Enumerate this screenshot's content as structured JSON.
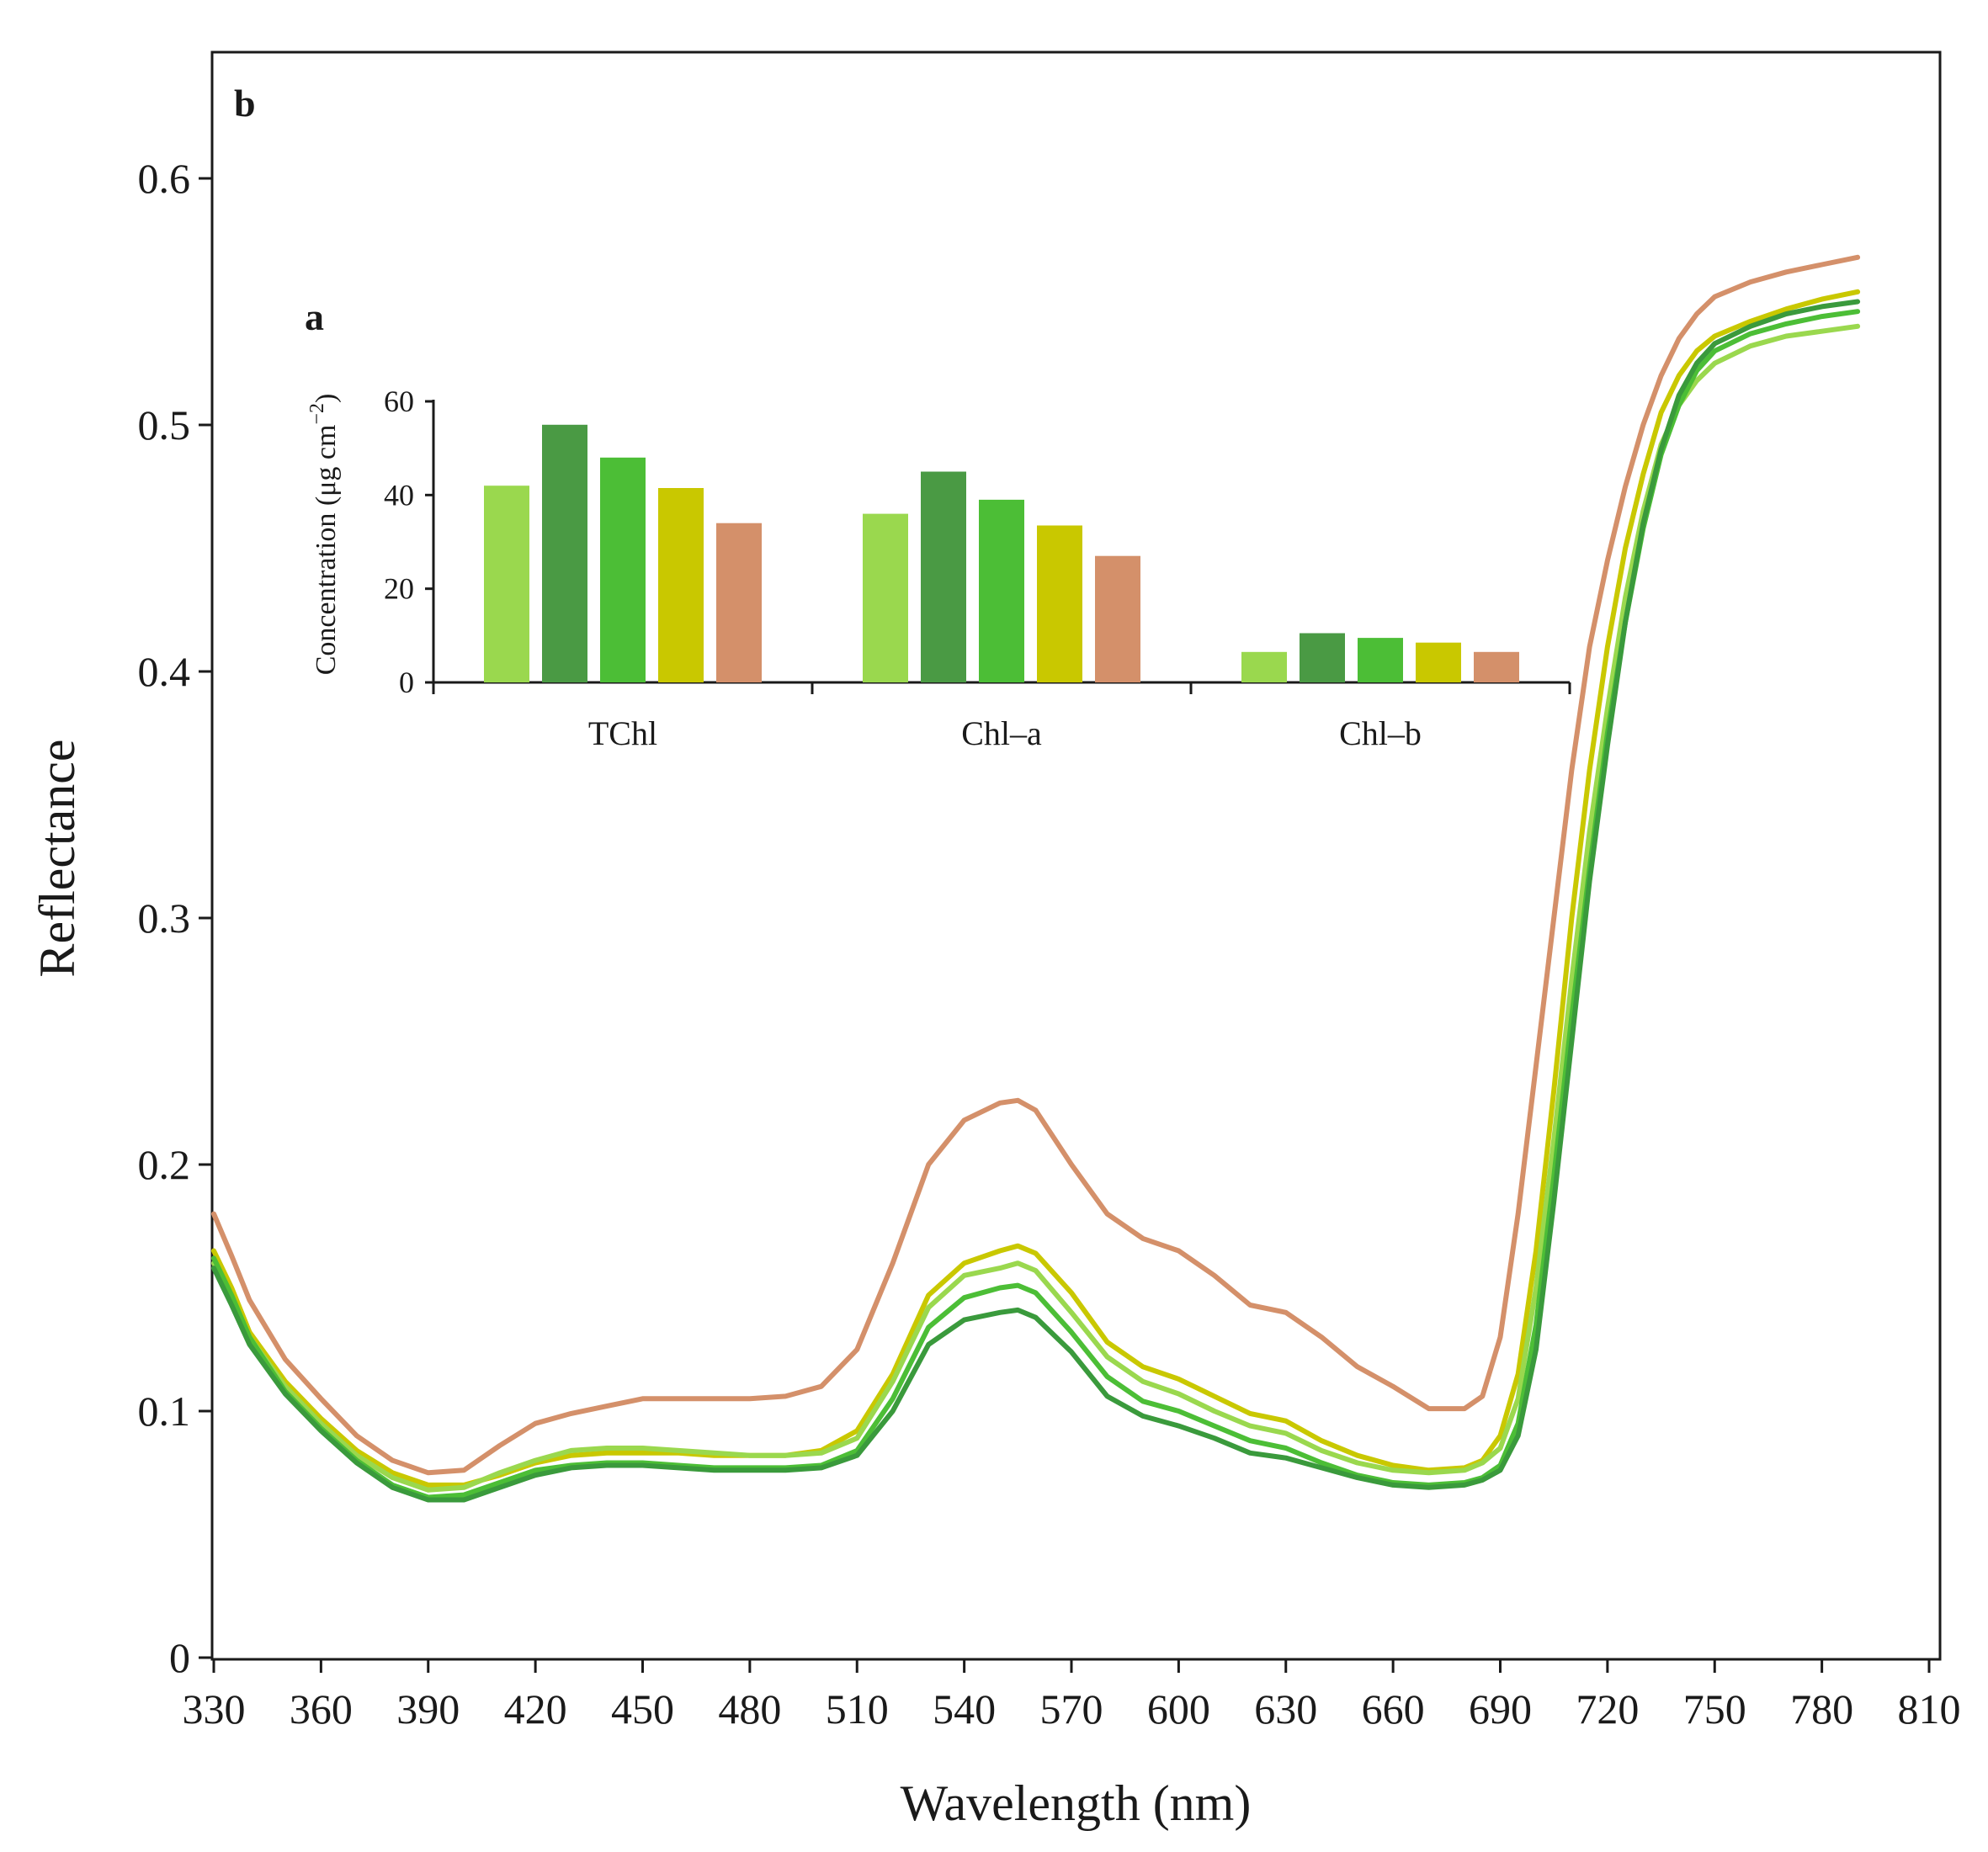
{
  "chart_data": [
    {
      "panel_label": "b",
      "type": "line",
      "title": "",
      "xlabel": "Wavelength (nm)",
      "ylabel": "Reflectance",
      "xlim": [
        330,
        810
      ],
      "ylim": [
        0,
        0.65
      ],
      "x_ticks": [
        330,
        360,
        390,
        420,
        450,
        480,
        510,
        540,
        570,
        600,
        630,
        660,
        690,
        720,
        750,
        780,
        810
      ],
      "y_ticks": [
        0,
        0.1,
        0.2,
        0.3,
        0.4,
        0.5,
        0.6
      ],
      "y_tick_labels": [
        "0",
        "0.1",
        "0.2",
        "0.3",
        "0.4",
        "0.5",
        "0.6"
      ],
      "grid": false,
      "legend": "none",
      "x": [
        330,
        335,
        340,
        350,
        360,
        370,
        380,
        390,
        400,
        410,
        420,
        430,
        440,
        450,
        460,
        470,
        480,
        490,
        500,
        510,
        520,
        530,
        540,
        550,
        555,
        560,
        570,
        580,
        590,
        600,
        610,
        620,
        630,
        640,
        650,
        660,
        670,
        680,
        685,
        690,
        695,
        700,
        705,
        710,
        715,
        720,
        725,
        730,
        735,
        740,
        745,
        750,
        760,
        770,
        780,
        790
      ],
      "series": [
        {
          "color": "#d4906a",
          "values": [
            0.18,
            0.163,
            0.145,
            0.121,
            0.105,
            0.09,
            0.08,
            0.075,
            0.076,
            0.086,
            0.095,
            0.099,
            0.102,
            0.105,
            0.105,
            0.105,
            0.105,
            0.106,
            0.11,
            0.125,
            0.16,
            0.2,
            0.218,
            0.225,
            0.226,
            0.222,
            0.2,
            0.18,
            0.17,
            0.165,
            0.155,
            0.143,
            0.14,
            0.13,
            0.118,
            0.11,
            0.101,
            0.101,
            0.106,
            0.13,
            0.18,
            0.24,
            0.3,
            0.36,
            0.41,
            0.445,
            0.475,
            0.5,
            0.52,
            0.535,
            0.545,
            0.552,
            0.558,
            0.562,
            0.565,
            0.568
          ]
        },
        {
          "color": "#c9c800",
          "values": [
            0.165,
            0.15,
            0.132,
            0.112,
            0.097,
            0.084,
            0.075,
            0.07,
            0.07,
            0.074,
            0.079,
            0.082,
            0.083,
            0.083,
            0.083,
            0.082,
            0.082,
            0.082,
            0.084,
            0.092,
            0.115,
            0.147,
            0.16,
            0.165,
            0.167,
            0.164,
            0.148,
            0.128,
            0.118,
            0.113,
            0.106,
            0.099,
            0.096,
            0.088,
            0.082,
            0.078,
            0.076,
            0.077,
            0.08,
            0.09,
            0.115,
            0.165,
            0.23,
            0.3,
            0.36,
            0.41,
            0.45,
            0.48,
            0.505,
            0.52,
            0.53,
            0.536,
            0.542,
            0.547,
            0.551,
            0.554
          ]
        },
        {
          "color": "#9ad84e",
          "values": [
            0.16,
            0.146,
            0.13,
            0.11,
            0.095,
            0.082,
            0.073,
            0.068,
            0.069,
            0.075,
            0.08,
            0.084,
            0.085,
            0.085,
            0.084,
            0.083,
            0.082,
            0.082,
            0.083,
            0.089,
            0.112,
            0.142,
            0.155,
            0.158,
            0.16,
            0.157,
            0.14,
            0.122,
            0.112,
            0.107,
            0.1,
            0.094,
            0.091,
            0.084,
            0.079,
            0.076,
            0.075,
            0.076,
            0.079,
            0.085,
            0.105,
            0.15,
            0.21,
            0.275,
            0.335,
            0.385,
            0.43,
            0.465,
            0.492,
            0.508,
            0.518,
            0.525,
            0.532,
            0.536,
            0.538,
            0.54
          ]
        },
        {
          "color": "#4cbe36",
          "values": [
            0.162,
            0.147,
            0.13,
            0.108,
            0.093,
            0.08,
            0.07,
            0.065,
            0.066,
            0.071,
            0.076,
            0.078,
            0.079,
            0.079,
            0.078,
            0.077,
            0.077,
            0.077,
            0.078,
            0.084,
            0.105,
            0.134,
            0.146,
            0.15,
            0.151,
            0.148,
            0.132,
            0.114,
            0.104,
            0.1,
            0.094,
            0.088,
            0.085,
            0.079,
            0.074,
            0.071,
            0.07,
            0.071,
            0.073,
            0.078,
            0.095,
            0.135,
            0.195,
            0.26,
            0.32,
            0.375,
            0.42,
            0.458,
            0.488,
            0.508,
            0.522,
            0.53,
            0.537,
            0.541,
            0.544,
            0.546
          ]
        },
        {
          "color": "#3a9a3c",
          "values": [
            0.158,
            0.143,
            0.127,
            0.107,
            0.092,
            0.079,
            0.069,
            0.064,
            0.064,
            0.069,
            0.074,
            0.077,
            0.078,
            0.078,
            0.077,
            0.076,
            0.076,
            0.076,
            0.077,
            0.082,
            0.1,
            0.127,
            0.137,
            0.14,
            0.141,
            0.138,
            0.124,
            0.106,
            0.098,
            0.094,
            0.089,
            0.083,
            0.081,
            0.077,
            0.073,
            0.07,
            0.069,
            0.07,
            0.072,
            0.076,
            0.09,
            0.125,
            0.185,
            0.25,
            0.315,
            0.37,
            0.42,
            0.46,
            0.49,
            0.512,
            0.525,
            0.533,
            0.54,
            0.545,
            0.548,
            0.55
          ]
        }
      ]
    },
    {
      "panel_label": "a",
      "type": "bar",
      "title": "",
      "xlabel": "",
      "ylabel": "Concentration (μg cm",
      "ylabel_sup": "−2",
      "ylabel_close": ")",
      "ylim": [
        0,
        60
      ],
      "y_ticks": [
        0,
        20,
        40,
        60
      ],
      "y_tick_labels": [
        "0",
        "20",
        "40",
        "60"
      ],
      "categories": [
        "TChl",
        "Chl–a",
        "Chl–b"
      ],
      "grid": false,
      "legend": "none",
      "series": [
        {
          "color": "#9ad84e",
          "values": [
            42,
            36,
            6.5
          ]
        },
        {
          "color": "#4a9a44",
          "values": [
            55,
            45,
            10.5
          ]
        },
        {
          "color": "#4cbe36",
          "values": [
            48,
            39,
            9.5
          ]
        },
        {
          "color": "#c9c800",
          "values": [
            41.5,
            33.5,
            8.5
          ]
        },
        {
          "color": "#d4906a",
          "values": [
            34,
            27,
            6.5
          ]
        }
      ]
    }
  ]
}
